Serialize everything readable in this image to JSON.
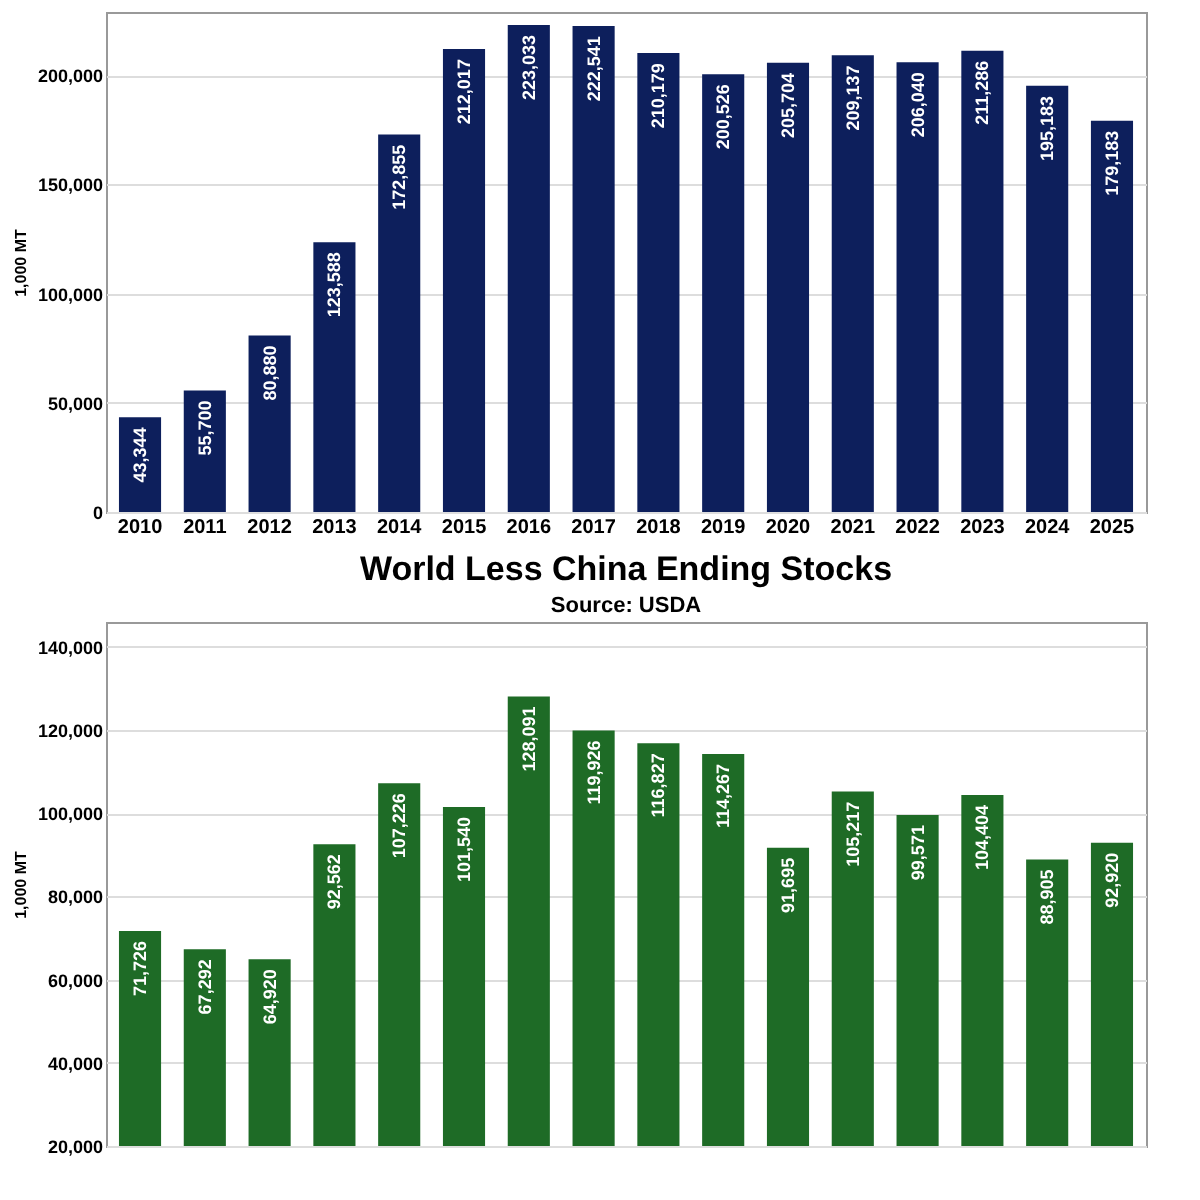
{
  "chart_data": [
    {
      "type": "bar",
      "ylabel": "1,000 MT",
      "categories": [
        "2010",
        "2011",
        "2012",
        "2013",
        "2014",
        "2015",
        "2016",
        "2017",
        "2018",
        "2019",
        "2020",
        "2021",
        "2022",
        "2023",
        "2024",
        "2025"
      ],
      "series": [
        {
          "color": "#0d1f5c",
          "values": [
            43344,
            55700,
            80880,
            123588,
            172855,
            212017,
            223033,
            222541,
            210179,
            200526,
            205704,
            209137,
            206040,
            211286,
            195183,
            179183
          ],
          "value_labels": [
            "43,344",
            "55,700",
            "80,880",
            "123,588",
            "172,855",
            "212,017",
            "223,033",
            "222,541",
            "210,179",
            "200,526",
            "205,704",
            "209,137",
            "206,040",
            "211,286",
            "195,183",
            "179,183"
          ]
        }
      ],
      "ylim": [
        0,
        229000
      ],
      "yticks": [
        0,
        {
          "value": 50000,
          "label": "50,000"
        },
        {
          "value": 100000,
          "label": "100,000"
        },
        {
          "value": 150000,
          "label": "150,000"
        },
        {
          "value": 200000,
          "label": "200,000"
        }
      ],
      "grid": "y"
    },
    {
      "type": "bar",
      "title": "World Less China Ending Stocks",
      "subtitle": "Source: USDA",
      "ylabel": "1,000 MT",
      "categories": [
        null,
        null,
        null,
        null,
        null,
        null,
        null,
        null,
        null,
        null,
        null,
        null,
        null,
        null,
        null,
        null
      ],
      "series": [
        {
          "color": "#1e6b26",
          "values": [
            71726,
            67292,
            64920,
            92562,
            107226,
            101540,
            128091,
            119926,
            116827,
            114267,
            91695,
            105217,
            99571,
            104404,
            88905,
            92920
          ],
          "value_labels": [
            "71,726",
            "67,292",
            "64,920",
            "92,562",
            "107,226",
            "101,540",
            "128,091",
            "119,926",
            "116,827",
            "114,267",
            "91,695",
            "105,217",
            "99,571",
            "104,404",
            "88,905",
            "92,920"
          ]
        }
      ],
      "ylim": [
        20000,
        146000
      ],
      "yticks": [
        {
          "value": 20000,
          "label": "20,000"
        },
        {
          "value": 40000,
          "label": "40,000"
        },
        {
          "value": 60000,
          "label": "60,000"
        },
        {
          "value": 80000,
          "label": "80,000"
        },
        {
          "value": 100000,
          "label": "100,000"
        },
        {
          "value": 120000,
          "label": "120,000"
        },
        {
          "value": 140000,
          "label": "140,000"
        }
      ],
      "grid": "y"
    }
  ]
}
